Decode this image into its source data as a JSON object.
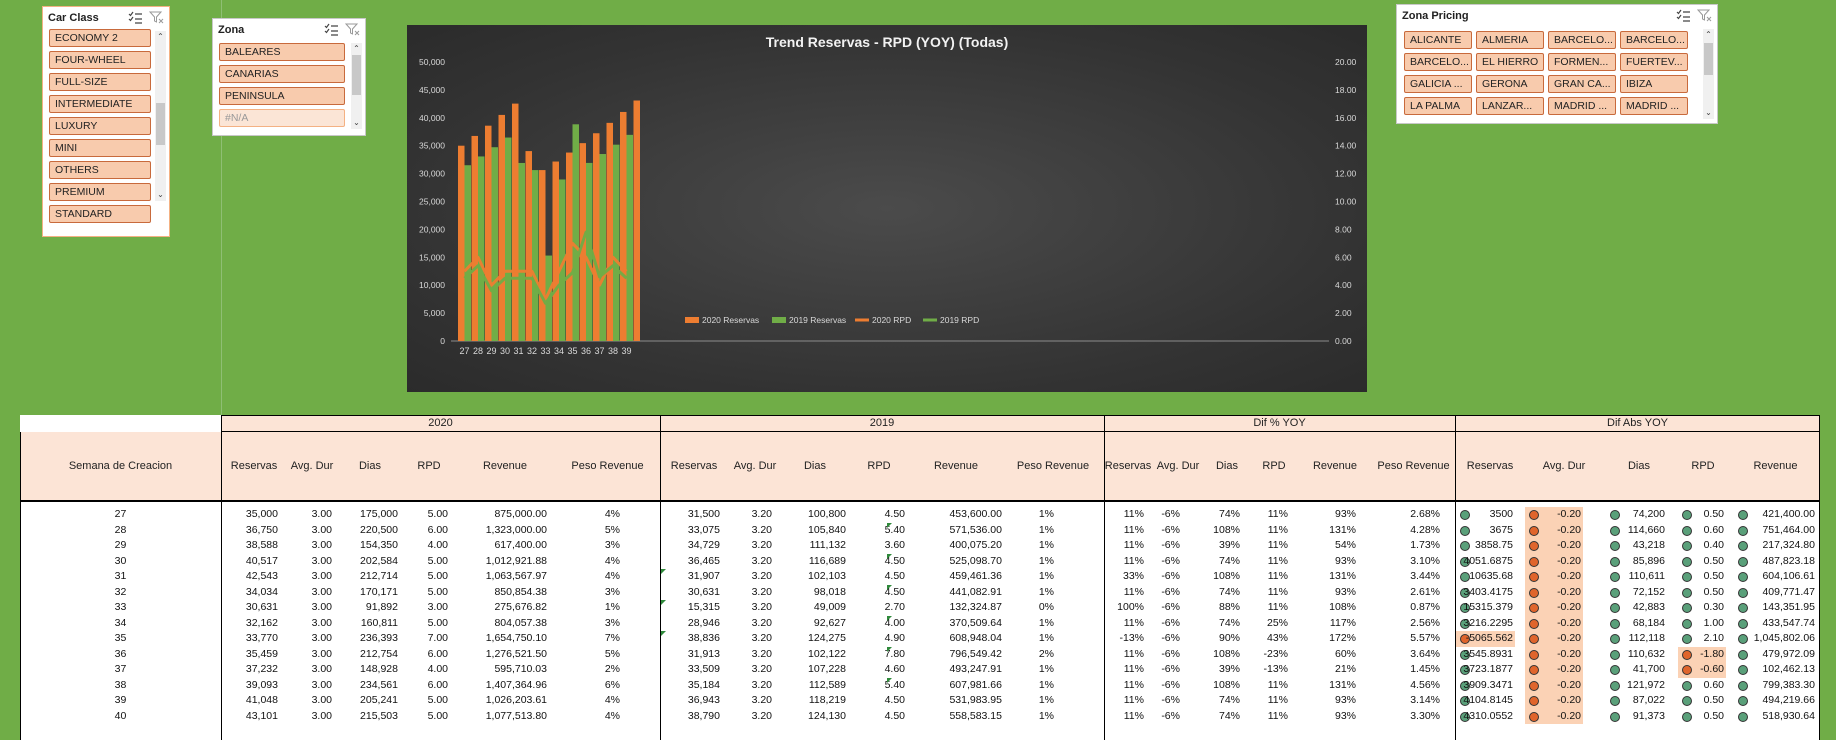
{
  "slicers": {
    "car_class": {
      "title": "Car Class",
      "items": [
        "ECONOMY 2",
        "FOUR-WHEEL",
        "FULL-SIZE",
        "INTERMEDIATE",
        "LUXURY",
        "MINI",
        "OTHERS",
        "PREMIUM",
        "STANDARD"
      ]
    },
    "zona": {
      "title": "Zona",
      "items": [
        "BALEARES",
        "CANARIAS",
        "PENINSULA",
        "#N/A"
      ]
    },
    "zona_pricing": {
      "title": "Zona Pricing",
      "items": [
        "ALICANTE",
        "ALMERIA",
        "BARCELO...",
        "BARCELO...",
        "BARCELO...",
        "EL HIERRO",
        "FORMEN...",
        "FUERTEV...",
        "GALICIA ...",
        "GERONA",
        "GRAN CA...",
        "IBIZA",
        "LA PALMA",
        "LANZAR...",
        "MADRID ...",
        "MADRID ..."
      ]
    }
  },
  "chart_data": {
    "type": "bar",
    "title": "Trend Reservas - RPD (YOY)  (Todas)",
    "categories": [
      "27",
      "28",
      "29",
      "30",
      "31",
      "32",
      "33",
      "34",
      "35",
      "36",
      "37",
      "38",
      "39"
    ],
    "series": [
      {
        "name": "2020 Reservas",
        "type": "bar",
        "axis": "left",
        "color": "#ed7d31",
        "values": [
          35000,
          36750,
          38588,
          40517,
          42543,
          34034,
          30631,
          32162,
          33770,
          35459,
          37232,
          39093,
          41048
        ]
      },
      {
        "name": "2019 Reservas",
        "type": "bar",
        "axis": "left",
        "color": "#70ad47",
        "values": [
          31500,
          33075,
          34729,
          36465,
          31907,
          30631,
          15315,
          28946,
          38836,
          31913,
          33509,
          35184,
          36943
        ]
      },
      {
        "name": "2020 RPD",
        "type": "line",
        "axis": "right",
        "color": "#ed7d31",
        "values": [
          5.0,
          6.0,
          4.0,
          5.0,
          5.0,
          5.0,
          3.0,
          5.0,
          7.0,
          6.0,
          4.0,
          6.0,
          5.0
        ]
      },
      {
        "name": "2019 RPD",
        "type": "line",
        "axis": "right",
        "color": "#70ad47",
        "values": [
          4.5,
          5.4,
          3.6,
          4.5,
          4.5,
          4.5,
          2.7,
          4.0,
          4.9,
          7.8,
          4.6,
          5.4,
          4.5
        ]
      }
    ],
    "extra_bar": {
      "category": "40",
      "series": "2020 Reservas",
      "value": 43101
    },
    "ylim": [
      0,
      50000
    ],
    "y2lim": [
      0,
      20
    ],
    "yticks": [
      "0",
      "5,000",
      "10,000",
      "15,000",
      "20,000",
      "25,000",
      "30,000",
      "35,000",
      "40,000",
      "45,000",
      "50,000"
    ],
    "y2ticks": [
      "0.00",
      "2.00",
      "4.00",
      "6.00",
      "8.00",
      "10.00",
      "12.00",
      "14.00",
      "16.00",
      "18.00",
      "20.00"
    ],
    "legend_position": "bottom"
  },
  "table": {
    "group_headers": [
      "2020",
      "2019",
      "Dif % YOY",
      "Dif Abs YOY"
    ],
    "row_header": "Semana de Creacion",
    "cols_2020": [
      "Reservas",
      "Avg. Dur",
      "Dias",
      "RPD",
      "Revenue",
      "Peso Revenue"
    ],
    "cols_2019": [
      "Reservas",
      "Avg. Dur",
      "Dias",
      "RPD",
      "Revenue",
      "Peso Revenue"
    ],
    "cols_pct": [
      "Reservas",
      "Avg. Dur",
      "Dias",
      "RPD",
      "Revenue",
      "Peso Revenue"
    ],
    "cols_abs": [
      "Reservas",
      "Avg. Dur",
      "Dias",
      "RPD",
      "Revenue"
    ],
    "rows": [
      {
        "week": "27",
        "a": [
          "35,000",
          "3.00",
          "175,000",
          "5.00",
          "875,000.00",
          "4%"
        ],
        "b": [
          "31,500",
          "3.20",
          "100,800",
          "4.50",
          "453,600.00",
          "1%"
        ],
        "p": [
          "11%",
          "-6%",
          "74%",
          "11%",
          "93%",
          "2.68%"
        ],
        "d": [
          "3500",
          "-0.20",
          "74,200",
          "0.50",
          "421,400.00"
        ],
        "dc": [
          "g",
          "o",
          "g",
          "g",
          "g"
        ]
      },
      {
        "week": "28",
        "a": [
          "36,750",
          "3.00",
          "220,500",
          "6.00",
          "1,323,000.00",
          "5%"
        ],
        "b": [
          "33,075",
          "3.20",
          "105,840",
          "5.40",
          "571,536.00",
          "1%"
        ],
        "p": [
          "11%",
          "-6%",
          "108%",
          "11%",
          "131%",
          "4.28%"
        ],
        "d": [
          "3675",
          "-0.20",
          "114,660",
          "0.60",
          "751,464.00"
        ],
        "dc": [
          "g",
          "o",
          "g",
          "g",
          "g"
        ]
      },
      {
        "week": "29",
        "a": [
          "38,588",
          "3.00",
          "154,350",
          "4.00",
          "617,400.00",
          "3%"
        ],
        "b": [
          "34,729",
          "3.20",
          "111,132",
          "3.60",
          "400,075.20",
          "1%"
        ],
        "p": [
          "11%",
          "-6%",
          "39%",
          "11%",
          "54%",
          "1.73%"
        ],
        "d": [
          "3858.75",
          "-0.20",
          "43,218",
          "0.40",
          "217,324.80"
        ],
        "dc": [
          "g",
          "o",
          "g",
          "g",
          "g"
        ]
      },
      {
        "week": "30",
        "a": [
          "40,517",
          "3.00",
          "202,584",
          "5.00",
          "1,012,921.88",
          "4%"
        ],
        "b": [
          "36,465",
          "3.20",
          "116,689",
          "4.50",
          "525,098.70",
          "1%"
        ],
        "p": [
          "11%",
          "-6%",
          "74%",
          "11%",
          "93%",
          "3.10%"
        ],
        "d": [
          "4051.6875",
          "-0.20",
          "85,896",
          "0.50",
          "487,823.18"
        ],
        "dc": [
          "g",
          "o",
          "g",
          "g",
          "g"
        ]
      },
      {
        "week": "31",
        "a": [
          "42,543",
          "3.00",
          "212,714",
          "5.00",
          "1,063,567.97",
          "4%"
        ],
        "b": [
          "31,907",
          "3.20",
          "102,103",
          "4.50",
          "459,461.36",
          "1%"
        ],
        "p": [
          "33%",
          "-6%",
          "108%",
          "11%",
          "131%",
          "3.44%"
        ],
        "d": [
          "10635.68",
          "-0.20",
          "110,611",
          "0.50",
          "604,106.61"
        ],
        "dc": [
          "g",
          "o",
          "g",
          "g",
          "g"
        ]
      },
      {
        "week": "32",
        "a": [
          "34,034",
          "3.00",
          "170,171",
          "5.00",
          "850,854.38",
          "3%"
        ],
        "b": [
          "30,631",
          "3.20",
          "98,018",
          "4.50",
          "441,082.91",
          "1%"
        ],
        "p": [
          "11%",
          "-6%",
          "74%",
          "11%",
          "93%",
          "2.61%"
        ],
        "d": [
          "3403.4175",
          "-0.20",
          "72,152",
          "0.50",
          "409,771.47"
        ],
        "dc": [
          "g",
          "o",
          "g",
          "g",
          "g"
        ]
      },
      {
        "week": "33",
        "a": [
          "30,631",
          "3.00",
          "91,892",
          "3.00",
          "275,676.82",
          "1%"
        ],
        "b": [
          "15,315",
          "3.20",
          "49,009",
          "2.70",
          "132,324.87",
          "0%"
        ],
        "p": [
          "100%",
          "-6%",
          "88%",
          "11%",
          "108%",
          "0.87%"
        ],
        "d": [
          "15315.379",
          "-0.20",
          "42,883",
          "0.30",
          "143,351.95"
        ],
        "dc": [
          "g",
          "o",
          "g",
          "g",
          "g"
        ]
      },
      {
        "week": "34",
        "a": [
          "32,162",
          "3.00",
          "160,811",
          "5.00",
          "804,057.38",
          "3%"
        ],
        "b": [
          "28,946",
          "3.20",
          "92,627",
          "4.00",
          "370,509.64",
          "1%"
        ],
        "p": [
          "11%",
          "-6%",
          "74%",
          "25%",
          "117%",
          "2.56%"
        ],
        "d": [
          "3216.2295",
          "-0.20",
          "68,184",
          "1.00",
          "433,547.74"
        ],
        "dc": [
          "g",
          "o",
          "g",
          "g",
          "g"
        ]
      },
      {
        "week": "35",
        "a": [
          "33,770",
          "3.00",
          "236,393",
          "7.00",
          "1,654,750.10",
          "7%"
        ],
        "b": [
          "38,836",
          "3.20",
          "124,275",
          "4.90",
          "608,948.04",
          "1%"
        ],
        "p": [
          "-13%",
          "-6%",
          "90%",
          "43%",
          "172%",
          "5.57%"
        ],
        "d": [
          "-5065.562",
          "-0.20",
          "112,118",
          "2.10",
          "1,045,802.06"
        ],
        "dc": [
          "o",
          "o",
          "g",
          "g",
          "g"
        ]
      },
      {
        "week": "36",
        "a": [
          "35,459",
          "3.00",
          "212,754",
          "6.00",
          "1,276,521.50",
          "5%"
        ],
        "b": [
          "31,913",
          "3.20",
          "102,122",
          "7.80",
          "796,549.42",
          "2%"
        ],
        "p": [
          "11%",
          "-6%",
          "108%",
          "-23%",
          "60%",
          "3.64%"
        ],
        "d": [
          "3545.8931",
          "-0.20",
          "110,632",
          "-1.80",
          "479,972.09"
        ],
        "dc": [
          "g",
          "o",
          "g",
          "o",
          "g"
        ]
      },
      {
        "week": "37",
        "a": [
          "37,232",
          "3.00",
          "148,928",
          "4.00",
          "595,710.03",
          "2%"
        ],
        "b": [
          "33,509",
          "3.20",
          "107,228",
          "4.60",
          "493,247.91",
          "1%"
        ],
        "p": [
          "11%",
          "-6%",
          "39%",
          "-13%",
          "21%",
          "1.45%"
        ],
        "d": [
          "3723.1877",
          "-0.20",
          "41,700",
          "-0.60",
          "102,462.13"
        ],
        "dc": [
          "g",
          "o",
          "g",
          "o",
          "g"
        ]
      },
      {
        "week": "38",
        "a": [
          "39,093",
          "3.00",
          "234,561",
          "6.00",
          "1,407,364.96",
          "6%"
        ],
        "b": [
          "35,184",
          "3.20",
          "112,589",
          "5.40",
          "607,981.66",
          "1%"
        ],
        "p": [
          "11%",
          "-6%",
          "108%",
          "11%",
          "131%",
          "4.56%"
        ],
        "d": [
          "3909.3471",
          "-0.20",
          "121,972",
          "0.60",
          "799,383.30"
        ],
        "dc": [
          "g",
          "o",
          "g",
          "g",
          "g"
        ]
      },
      {
        "week": "39",
        "a": [
          "41,048",
          "3.00",
          "205,241",
          "5.00",
          "1,026,203.61",
          "4%"
        ],
        "b": [
          "36,943",
          "3.20",
          "118,219",
          "4.50",
          "531,983.95",
          "1%"
        ],
        "p": [
          "11%",
          "-6%",
          "74%",
          "11%",
          "93%",
          "3.14%"
        ],
        "d": [
          "4104.8145",
          "-0.20",
          "87,022",
          "0.50",
          "494,219.66"
        ],
        "dc": [
          "g",
          "o",
          "g",
          "g",
          "g"
        ]
      },
      {
        "week": "40",
        "a": [
          "43,101",
          "3.00",
          "215,503",
          "5.00",
          "1,077,513.80",
          "4%"
        ],
        "b": [
          "38,790",
          "3.20",
          "124,130",
          "4.50",
          "558,583.15",
          "1%"
        ],
        "p": [
          "11%",
          "-6%",
          "74%",
          "11%",
          "93%",
          "3.30%"
        ],
        "d": [
          "4310.0552",
          "-0.20",
          "91,373",
          "0.50",
          "518,930.64"
        ],
        "dc": [
          "g",
          "o",
          "g",
          "g",
          "g"
        ]
      }
    ]
  }
}
